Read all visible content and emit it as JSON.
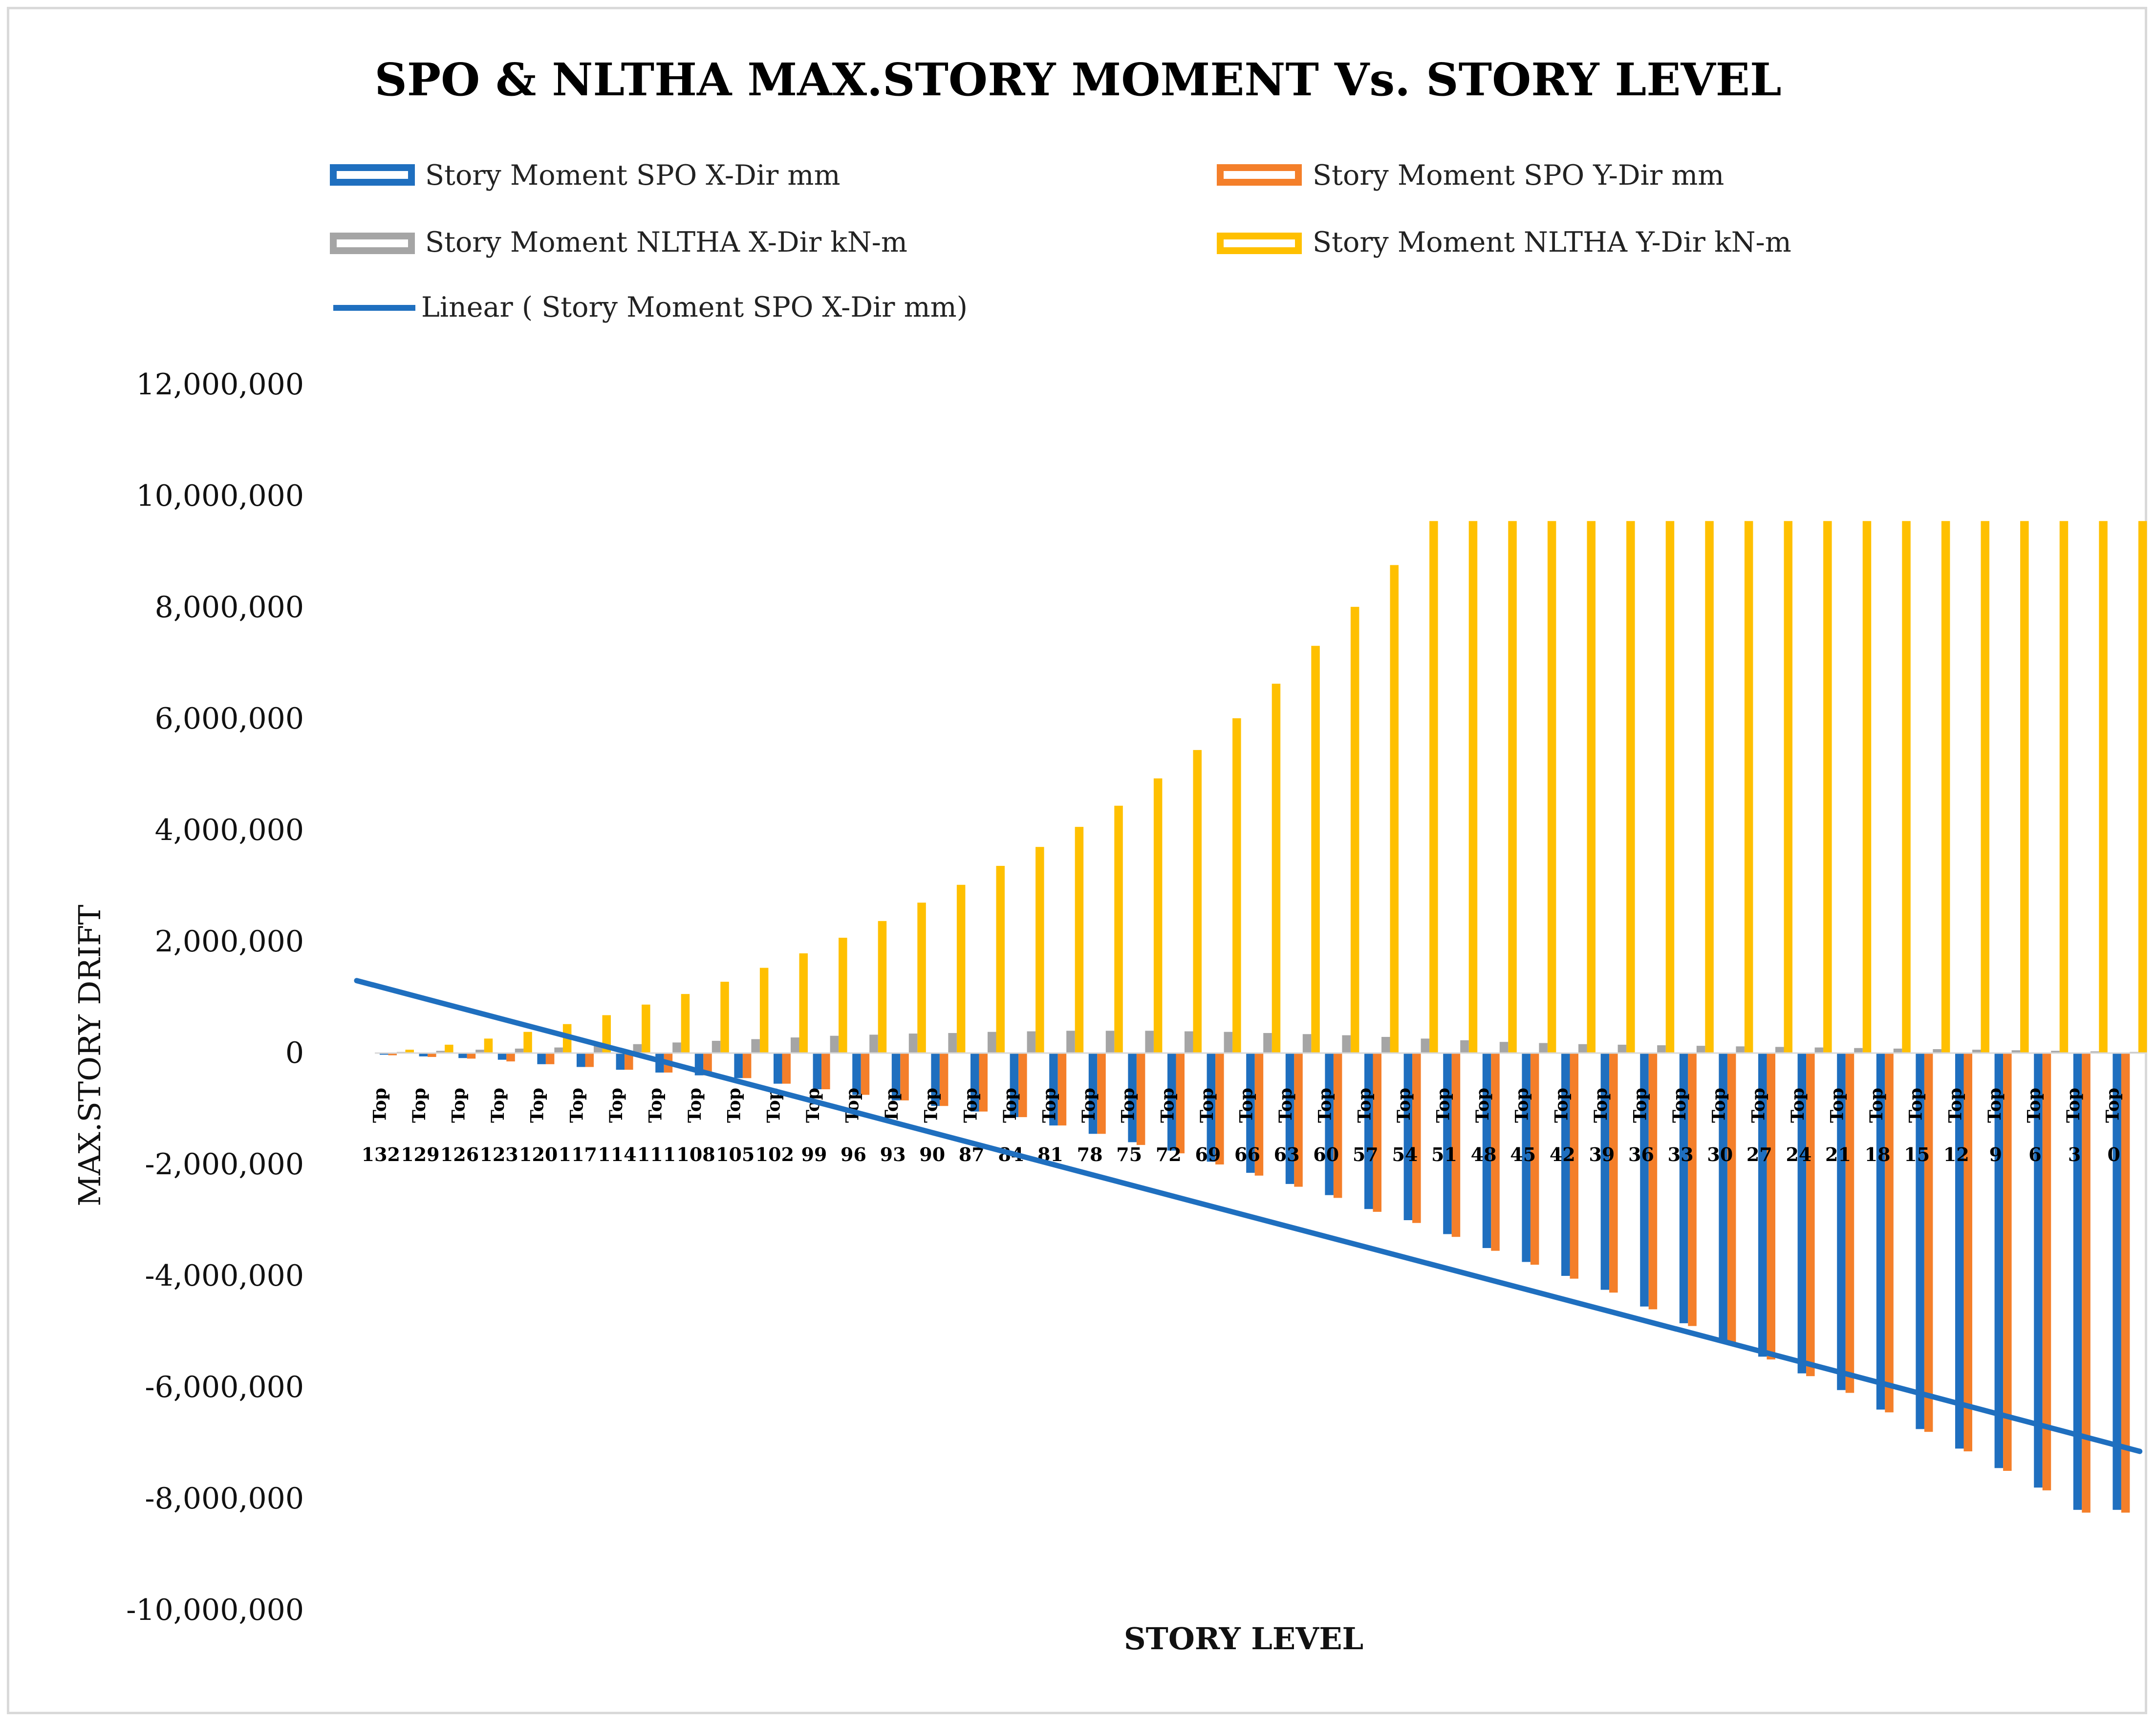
{
  "chart_data": {
    "type": "bar",
    "title": "SPO & NLTHA  MAX.STORY MOMENT Vs. STORY LEVEL",
    "xlabel": "STORY LEVEL",
    "ylabel": "MAX.STORY DRIFT",
    "ylim": [
      -10000000,
      12000000
    ],
    "ytick_values": [
      -10000000,
      -8000000,
      -6000000,
      -4000000,
      -2000000,
      0,
      2000000,
      4000000,
      6000000,
      8000000,
      10000000,
      12000000
    ],
    "ytick_labels": [
      "-10,000,000",
      "-8,000,000",
      "-6,000,000",
      "-4,000,000",
      "-2,000,000",
      "0",
      "2,000,000",
      "4,000,000",
      "6,000,000",
      "8,000,000",
      "10,000,000",
      "12,000,000"
    ],
    "category_prefix": [
      "Top",
      "Top",
      "Top",
      "Top",
      "Top",
      "Top",
      "Top",
      "Top",
      "Top",
      "Top",
      "Top",
      "Top",
      "Top",
      "Top",
      "Top",
      "Top",
      "Top",
      "Top",
      "Top",
      "Top",
      "Top",
      "Top",
      "Top",
      "Top",
      "Top",
      "Top",
      "Top",
      "Top",
      "Top",
      "Top",
      "Top",
      "Top",
      "Top",
      "Top",
      "Top",
      "Top",
      "Top",
      "Top",
      "Top",
      "Top",
      "Top",
      "Top",
      "Top",
      "Top",
      "Top"
    ],
    "categories": [
      "132",
      "129",
      "126",
      "123",
      "120",
      "117",
      "114",
      "111",
      "108",
      "105",
      "102",
      "99",
      "96",
      "93",
      "90",
      "87",
      "84",
      "81",
      "78",
      "75",
      "72",
      "69",
      "66",
      "63",
      "60",
      "57",
      "54",
      "51",
      "48",
      "45",
      "42",
      "39",
      "36",
      "33",
      "30",
      "27",
      "24",
      "21",
      "18",
      "15",
      "12",
      "9",
      "6",
      "3",
      "0"
    ],
    "legend_position": "top",
    "series": [
      {
        "name": "Story Moment SPO X-Dir mm",
        "color": "#1f6fbf",
        "values": [
          -30000,
          -60000,
          -90000,
          -120000,
          -200000,
          -250000,
          -300000,
          -350000,
          -400000,
          -450000,
          -550000,
          -650000,
          -750000,
          -850000,
          -950000,
          -1050000,
          -1150000,
          -1300000,
          -1450000,
          -1600000,
          -1750000,
          -1950000,
          -2150000,
          -2350000,
          -2550000,
          -2800000,
          -3000000,
          -3250000,
          -3500000,
          -3750000,
          -4000000,
          -4250000,
          -4550000,
          -4850000,
          -5150000,
          -5450000,
          -5750000,
          -6050000,
          -6400000,
          -6750000,
          -7100000,
          -7450000,
          -7800000,
          -8200000,
          -8200000
        ]
      },
      {
        "name": "Story Moment SPO Y-Dir mm",
        "color": "#f47f2a",
        "values": [
          -40000,
          -70000,
          -100000,
          -150000,
          -200000,
          -250000,
          -300000,
          -350000,
          -400000,
          -450000,
          -550000,
          -650000,
          -750000,
          -850000,
          -950000,
          -1050000,
          -1150000,
          -1300000,
          -1450000,
          -1650000,
          -1800000,
          -2000000,
          -2200000,
          -2400000,
          -2600000,
          -2850000,
          -3050000,
          -3300000,
          -3550000,
          -3800000,
          -4050000,
          -4300000,
          -4600000,
          -4900000,
          -5200000,
          -5500000,
          -5800000,
          -6100000,
          -6450000,
          -6800000,
          -7150000,
          -7500000,
          -7850000,
          -8250000,
          -8250000
        ]
      },
      {
        "name": "Story Moment NLTHA X-Dir kN-m",
        "color": "#a5a5a5",
        "values": [
          20000,
          40000,
          60000,
          80000,
          100000,
          130000,
          160000,
          190000,
          220000,
          250000,
          280000,
          310000,
          330000,
          350000,
          360000,
          380000,
          390000,
          400000,
          400000,
          400000,
          390000,
          380000,
          360000,
          340000,
          320000,
          290000,
          260000,
          230000,
          200000,
          180000,
          160000,
          150000,
          140000,
          130000,
          120000,
          110000,
          100000,
          90000,
          80000,
          70000,
          60000,
          50000,
          40000,
          30000,
          20000
        ]
      },
      {
        "name": "Story Moment NLTHA Y-Dir kN-m",
        "color": "#ffc000",
        "values": [
          60000,
          150000,
          260000,
          380000,
          520000,
          680000,
          870000,
          1060000,
          1280000,
          1530000,
          1790000,
          2070000,
          2370000,
          2700000,
          3020000,
          3360000,
          3700000,
          4060000,
          4440000,
          4930000,
          5440000,
          6010000,
          6630000,
          7310000,
          8010000,
          8760000,
          9550000,
          9550000,
          9550000,
          9550000,
          9550000,
          9550000,
          9550000,
          9550000,
          9550000,
          9550000,
          9550000,
          9550000,
          9550000,
          9550000,
          9550000,
          9550000,
          9550000,
          9550000,
          9550000
        ]
      }
    ],
    "trendline": {
      "name": "Linear ( Story Moment SPO X-Dir mm)",
      "color": "#1f6fbf",
      "start_value": 1300000,
      "end_value": -7150000
    }
  }
}
